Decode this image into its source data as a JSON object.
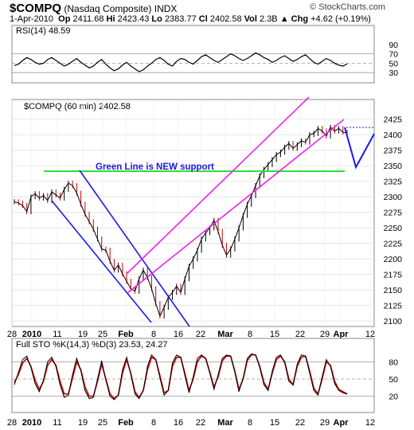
{
  "header": {
    "symbol": "$COMPQ",
    "name": "(Nasdaq Composite)",
    "exchange": "INDX",
    "credit": "© StockCharts.com",
    "date": "1-Apr-2010",
    "open_label": "Op",
    "open": "2411.68",
    "high_label": "Hi",
    "high": "2423.43",
    "low_label": "Lo",
    "low": "2383.77",
    "close_label": "Cl",
    "close": "2402.58",
    "vol_label": "Vol",
    "vol": "2.3B",
    "chg_label": "Chg",
    "chg": "+4.62 (+0.19%)",
    "chg_arrow": "▲"
  },
  "chart_data": [
    {
      "type": "line",
      "title": "RSI(14) 48.59",
      "ylim": [
        15,
        100
      ],
      "yticks": [
        90,
        70,
        50,
        30
      ],
      "reference_lines": [
        70,
        50,
        30
      ],
      "series": [
        {
          "name": "RSI(14)",
          "x": [
            0,
            1,
            2,
            3,
            4,
            5,
            6,
            7,
            8,
            9,
            10,
            11,
            12,
            13,
            14,
            15,
            16,
            17,
            18,
            19,
            20,
            21,
            22,
            23,
            24,
            25,
            26,
            27,
            28,
            29,
            30,
            31,
            32,
            33,
            34,
            35,
            36,
            37,
            38,
            39,
            40,
            41,
            42,
            43,
            44,
            45,
            46,
            47,
            48,
            49,
            50,
            51,
            52,
            53,
            54,
            55,
            56,
            57,
            58,
            59,
            60,
            61,
            62,
            63,
            64,
            65,
            66,
            67,
            68,
            69,
            70,
            71,
            72,
            73,
            74,
            75,
            76,
            77,
            78,
            79,
            80
          ],
          "values": [
            45,
            48,
            56,
            62,
            58,
            52,
            48,
            50,
            58,
            62,
            56,
            50,
            44,
            48,
            54,
            60,
            52,
            46,
            40,
            44,
            52,
            58,
            48,
            40,
            34,
            38,
            46,
            52,
            44,
            38,
            32,
            36,
            44,
            50,
            58,
            62,
            56,
            48,
            44,
            54,
            60,
            58,
            52,
            48,
            56,
            64,
            68,
            62,
            56,
            52,
            58,
            64,
            70,
            66,
            60,
            56,
            60,
            66,
            72,
            68,
            62,
            58,
            52,
            56,
            62,
            66,
            60,
            54,
            58,
            64,
            68,
            60,
            52,
            48,
            54,
            60,
            56,
            50,
            46,
            44,
            48.59
          ]
        }
      ]
    },
    {
      "type": "line",
      "title": "$COMPQ (60 min) 2402.58",
      "ylim": [
        2095,
        2440
      ],
      "yticks": [
        2425,
        2400,
        2375,
        2350,
        2325,
        2300,
        2275,
        2250,
        2225,
        2200,
        2175,
        2150,
        2125,
        2100
      ],
      "xlabels": [
        "28",
        "2010",
        "11",
        "19",
        "25",
        "Feb",
        "8",
        "16",
        "22",
        "Mar",
        "8",
        "15",
        "22",
        "29",
        "Apr",
        "12"
      ],
      "series": [
        {
          "name": "$COMPQ",
          "x": [
            0,
            1,
            2,
            3,
            4,
            5,
            6,
            7,
            8,
            9,
            10,
            11,
            12,
            13,
            14,
            15,
            16,
            17,
            18,
            19,
            20,
            21,
            22,
            23,
            24,
            25,
            26,
            27,
            28,
            29,
            30,
            31,
            32,
            33,
            34,
            35,
            36,
            37,
            38,
            39,
            40,
            41,
            42,
            43,
            44,
            45,
            46,
            47,
            48,
            49,
            50,
            51,
            52,
            53,
            54,
            55,
            56,
            57,
            58,
            59,
            60,
            61,
            62,
            63,
            64,
            65,
            66,
            67,
            68,
            69,
            70,
            71,
            72,
            73,
            74,
            75,
            76,
            77,
            78,
            79,
            80
          ],
          "values": [
            2292,
            2290,
            2286,
            2276,
            2300,
            2305,
            2298,
            2302,
            2294,
            2308,
            2303,
            2298,
            2312,
            2322,
            2318,
            2306,
            2288,
            2272,
            2260,
            2248,
            2232,
            2216,
            2214,
            2196,
            2182,
            2190,
            2176,
            2164,
            2152,
            2148,
            2168,
            2182,
            2170,
            2152,
            2128,
            2108,
            2122,
            2138,
            2146,
            2156,
            2146,
            2168,
            2188,
            2200,
            2214,
            2232,
            2242,
            2250,
            2262,
            2244,
            2222,
            2206,
            2216,
            2232,
            2250,
            2270,
            2288,
            2302,
            2318,
            2334,
            2344,
            2352,
            2360,
            2368,
            2372,
            2380,
            2386,
            2378,
            2384,
            2390,
            2388,
            2400,
            2402,
            2410,
            2406,
            2398,
            2412,
            2406,
            2410,
            2404,
            2402.58
          ]
        }
      ],
      "annotations": [
        {
          "type": "hline",
          "color": "#33dd33",
          "y": 2328,
          "label": "Green Line is NEW support"
        },
        {
          "type": "channel",
          "color": "#1a1aee",
          "description": "downtrend channel"
        },
        {
          "type": "channel",
          "color": "#ee22ee",
          "description": "uptrend channel"
        },
        {
          "type": "projection",
          "color": "#1a1aee",
          "y_path": [
            2395,
            2335,
            2390
          ]
        },
        {
          "type": "dotted",
          "color": "#1a1aee",
          "y": 2400
        }
      ]
    },
    {
      "type": "line",
      "title": "Full STO %K(14,3) %D(3) 23.53, 24.27",
      "ylim": [
        0,
        100
      ],
      "yticks": [
        80,
        50,
        20
      ],
      "reference_lines": [
        80,
        50,
        20
      ],
      "xlabels": [
        "28",
        "2010",
        "11",
        "19",
        "25",
        "Feb",
        "8",
        "16",
        "22",
        "Mar",
        "8",
        "15",
        "22",
        "29",
        "Apr",
        "12"
      ],
      "series": [
        {
          "name": "%K(14,3)",
          "values": [
            40,
            62,
            84,
            90,
            70,
            42,
            28,
            48,
            80,
            88,
            72,
            40,
            18,
            22,
            58,
            86,
            64,
            30,
            16,
            18,
            50,
            82,
            48,
            20,
            14,
            22,
            66,
            88,
            58,
            24,
            16,
            30,
            72,
            92,
            84,
            52,
            22,
            30,
            78,
            92,
            88,
            56,
            26,
            54,
            86,
            92,
            86,
            60,
            32,
            58,
            86,
            92,
            90,
            62,
            28,
            52,
            86,
            94,
            92,
            70,
            40,
            30,
            64,
            88,
            92,
            78,
            46,
            40,
            76,
            92,
            90,
            60,
            30,
            22,
            54,
            84,
            72,
            42,
            30,
            26,
            23.53
          ]
        },
        {
          "name": "%D(3)",
          "values": [
            44,
            58,
            78,
            86,
            72,
            48,
            32,
            46,
            74,
            84,
            74,
            46,
            24,
            24,
            52,
            80,
            66,
            36,
            20,
            20,
            46,
            76,
            50,
            24,
            16,
            22,
            60,
            84,
            60,
            28,
            18,
            30,
            66,
            88,
            84,
            56,
            26,
            30,
            72,
            88,
            88,
            60,
            30,
            50,
            80,
            90,
            86,
            62,
            36,
            54,
            82,
            90,
            90,
            64,
            32,
            50,
            82,
            92,
            92,
            72,
            44,
            32,
            60,
            84,
            90,
            80,
            50,
            40,
            72,
            88,
            90,
            64,
            34,
            24,
            50,
            80,
            74,
            46,
            32,
            28,
            24.27
          ]
        }
      ]
    }
  ]
}
